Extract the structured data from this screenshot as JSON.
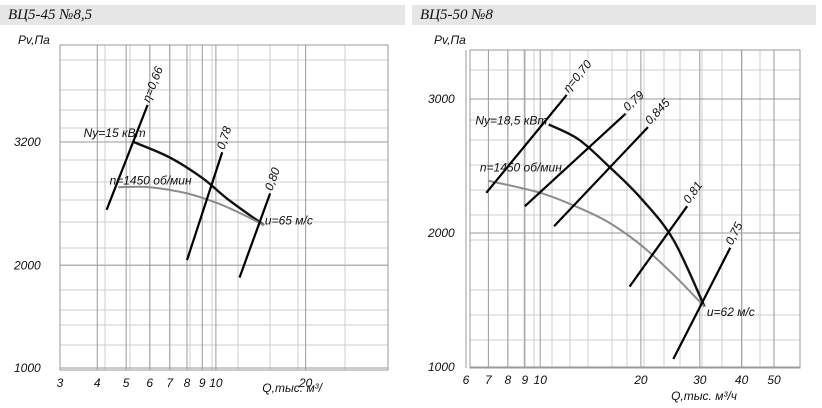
{
  "chart_data": [
    {
      "type": "line",
      "title": "ВЦ5-45 №8,5",
      "ylabel": "Pv,Па",
      "xlabel": "Q,тыс. м³/",
      "x_scale": "log",
      "x_ticks": [
        3,
        4,
        5,
        6,
        7,
        8,
        9,
        10,
        20
      ],
      "x_tick_labels": [
        "3",
        "4",
        "5",
        "6",
        "7",
        "8",
        "9",
        "10",
        "20"
      ],
      "y_ticks": [
        1000,
        2000,
        3200
      ],
      "y_tick_labels": [
        "1000",
        "2000",
        "3200"
      ],
      "grid": true,
      "series": [
        {
          "name": "Ny=15 кВт",
          "color": "#111111",
          "points": [
            [
              5.3,
              3200
            ],
            [
              7.0,
              3050
            ],
            [
              9.0,
              2850
            ],
            [
              11.0,
              2640
            ],
            [
              14.5,
              2390
            ]
          ]
        },
        {
          "name": "n=1450 об/мин",
          "color": "#8c8c8c",
          "points": [
            [
              4.7,
              2760
            ],
            [
              6.0,
              2760
            ],
            [
              8.0,
              2700
            ],
            [
              10.0,
              2610
            ],
            [
              12.0,
              2510
            ],
            [
              14.5,
              2390
            ]
          ]
        }
      ],
      "efficiency_lines": [
        {
          "label": "η=0,66",
          "from": [
            4.3,
            2540
          ],
          "to": [
            5.9,
            3560
          ]
        },
        {
          "label": "0,78",
          "from": [
            8.0,
            2050
          ],
          "to": [
            10.5,
            3100
          ]
        },
        {
          "label": "0,80",
          "from": [
            12.0,
            1880
          ],
          "to": [
            15.2,
            2700
          ]
        }
      ],
      "annotations": [
        {
          "text": "Ny=15 кВт",
          "x": 3.6,
          "y": 3250
        },
        {
          "text": "n=1450 об/мин",
          "x": 4.4,
          "y": 2785
        },
        {
          "text": "u=65 м/с",
          "x": 14.6,
          "y": 2395
        }
      ]
    },
    {
      "type": "line",
      "title": "ВЦ5-50 №8",
      "ylabel": "Pv,Па",
      "xlabel": "Q,тыс. м³/ч",
      "x_scale": "log",
      "x_ticks": [
        6,
        7,
        8,
        9,
        10,
        20,
        30,
        40,
        50
      ],
      "x_tick_labels": [
        "6",
        "7",
        "8",
        "9",
        "10",
        "20",
        "30",
        "40",
        "50"
      ],
      "y_ticks": [
        1000,
        2000,
        3000
      ],
      "y_tick_labels": [
        "1000",
        "2000",
        "3000"
      ],
      "grid": true,
      "series": [
        {
          "name": "Ny=18,5 кВт",
          "color": "#111111",
          "points": [
            [
              10.6,
              2810
            ],
            [
              13.0,
              2700
            ],
            [
              16.0,
              2500
            ],
            [
              20.0,
              2260
            ],
            [
              25.0,
              1950
            ],
            [
              31.0,
              1450
            ]
          ]
        },
        {
          "name": "n=1450 об/мин",
          "color": "#8c8c8c",
          "points": [
            [
              7.0,
              2390
            ],
            [
              10.0,
              2300
            ],
            [
              13.0,
              2190
            ],
            [
              16.0,
              2080
            ],
            [
              20.0,
              1910
            ],
            [
              25.0,
              1690
            ],
            [
              31.0,
              1450
            ]
          ]
        }
      ],
      "efficiency_lines": [
        {
          "label": "η=0,70",
          "from": [
            6.9,
            2300
          ],
          "to": [
            12.0,
            3030
          ]
        },
        {
          "label": "0,79",
          "from": [
            9.0,
            2200
          ],
          "to": [
            18.0,
            2890
          ]
        },
        {
          "label": "0,845",
          "from": [
            11.0,
            2050
          ],
          "to": [
            21.0,
            2790
          ]
        },
        {
          "label": "0,81",
          "from": [
            18.5,
            1600
          ],
          "to": [
            27.5,
            2200
          ]
        },
        {
          "label": "0,75",
          "from": [
            25.0,
            1060
          ],
          "to": [
            37.0,
            1890
          ]
        }
      ],
      "annotations": [
        {
          "text": "Ny=18,5 кВт",
          "x": 6.4,
          "y": 2810
        },
        {
          "text": "n=1450 об/мин",
          "x": 6.6,
          "y": 2460
        },
        {
          "text": "u=62 м/с",
          "x": 31.5,
          "y": 1380
        }
      ]
    }
  ]
}
